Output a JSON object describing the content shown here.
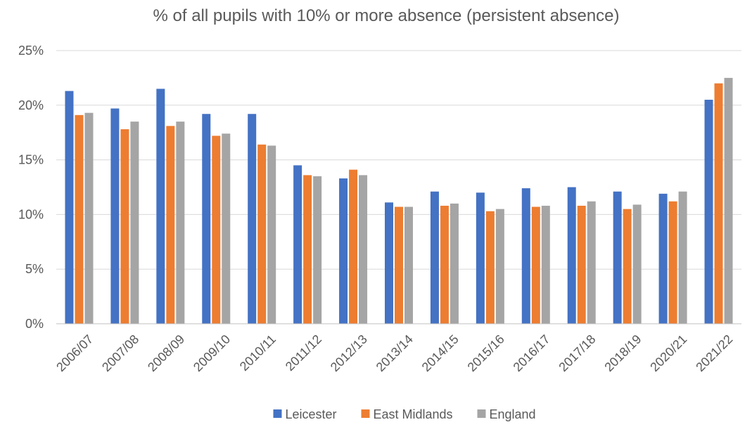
{
  "chart_data": {
    "type": "bar",
    "title": "% of all pupils with 10% or more absence (persistent absence)",
    "categories": [
      "2006/07",
      "2007/08",
      "2008/09",
      "2009/10",
      "2010/11",
      "2011/12",
      "2012/13",
      "2013/14",
      "2014/15",
      "2015/16",
      "2016/17",
      "2017/18",
      "2018/19",
      "2020/21",
      "2021/22"
    ],
    "series": [
      {
        "name": "Leicester",
        "color": "#4472C4",
        "values": [
          21.3,
          19.7,
          21.5,
          19.2,
          19.2,
          14.5,
          13.3,
          11.1,
          12.1,
          12.0,
          12.4,
          12.5,
          12.1,
          11.9,
          20.5
        ]
      },
      {
        "name": "East Midlands",
        "color": "#ED7D31",
        "values": [
          19.1,
          17.8,
          18.1,
          17.2,
          16.4,
          13.6,
          14.1,
          10.7,
          10.8,
          10.3,
          10.7,
          10.8,
          10.5,
          11.2,
          22.0
        ]
      },
      {
        "name": "England",
        "color": "#A5A5A5",
        "values": [
          19.3,
          18.5,
          18.5,
          17.4,
          16.3,
          13.5,
          13.6,
          10.7,
          11.0,
          10.5,
          10.8,
          11.2,
          10.9,
          12.1,
          22.5
        ]
      }
    ],
    "ylim": [
      0,
      25
    ],
    "yticks": [
      "0%",
      "5%",
      "10%",
      "15%",
      "20%",
      "25%"
    ],
    "grid": true,
    "legend_position": "bottom"
  }
}
